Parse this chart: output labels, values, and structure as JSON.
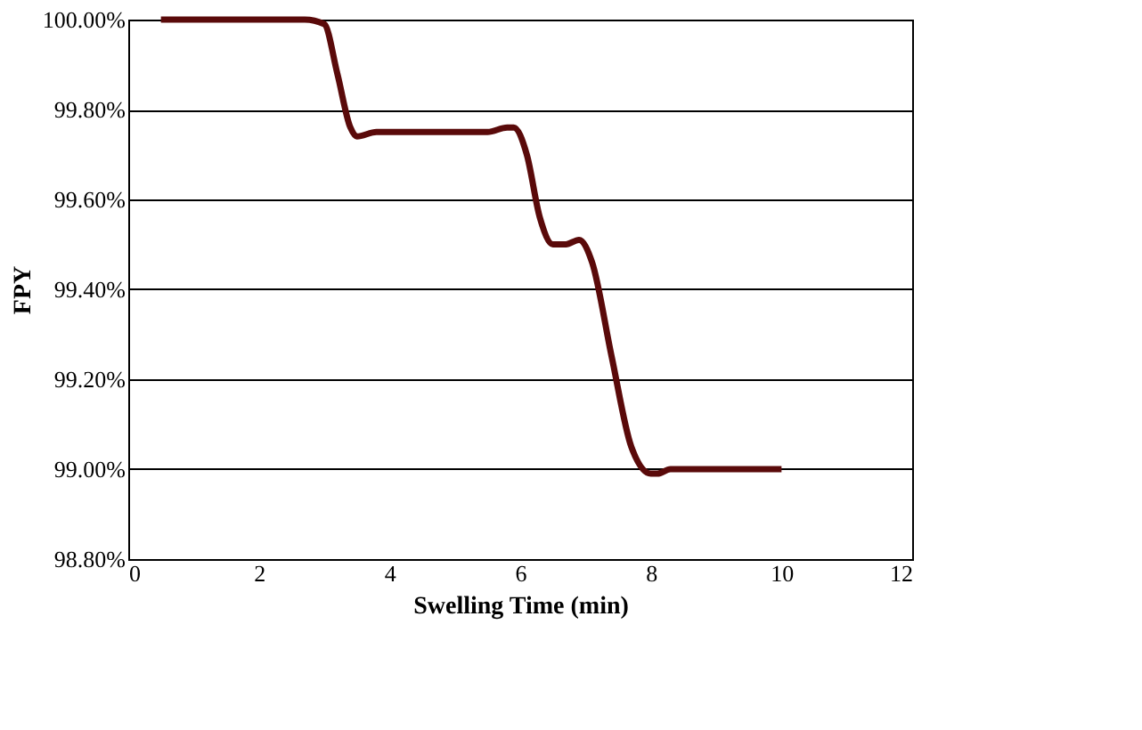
{
  "chart_data": {
    "type": "line",
    "xlabel": "Swelling Time (min)",
    "ylabel": "FPY",
    "x": [
      0.5,
      2.7,
      3.0,
      3.2,
      3.4,
      3.5,
      3.8,
      5.5,
      5.8,
      5.9,
      6.1,
      6.3,
      6.5,
      6.7,
      6.9,
      7.1,
      7.4,
      7.7,
      8.0,
      8.1,
      8.3,
      10
    ],
    "series": [
      {
        "color": "#5a0a0a",
        "values": [
          100,
          100,
          99.99,
          99.88,
          99.76,
          99.74,
          99.75,
          99.75,
          99.76,
          99.76,
          99.7,
          99.56,
          99.5,
          99.5,
          99.51,
          99.46,
          99.25,
          99.05,
          98.99,
          98.99,
          99.0,
          99.0
        ]
      }
    ],
    "xlim": [
      0,
      12
    ],
    "xticks": [
      0,
      2,
      4,
      6,
      8,
      10,
      12
    ],
    "ylim": [
      98.8,
      100.0
    ],
    "yticks": [
      {
        "value": 98.8,
        "label": "98.80%"
      },
      {
        "value": 99.0,
        "label": "99.00%"
      },
      {
        "value": 99.2,
        "label": "99.20%"
      },
      {
        "value": 99.4,
        "label": "99.40%"
      },
      {
        "value": 99.6,
        "label": "99.60%"
      },
      {
        "value": 99.8,
        "label": "99.80%"
      },
      {
        "value": 100.0,
        "label": "100.00%"
      }
    ],
    "grid": "y",
    "marker": "none",
    "line_style": "solid"
  }
}
